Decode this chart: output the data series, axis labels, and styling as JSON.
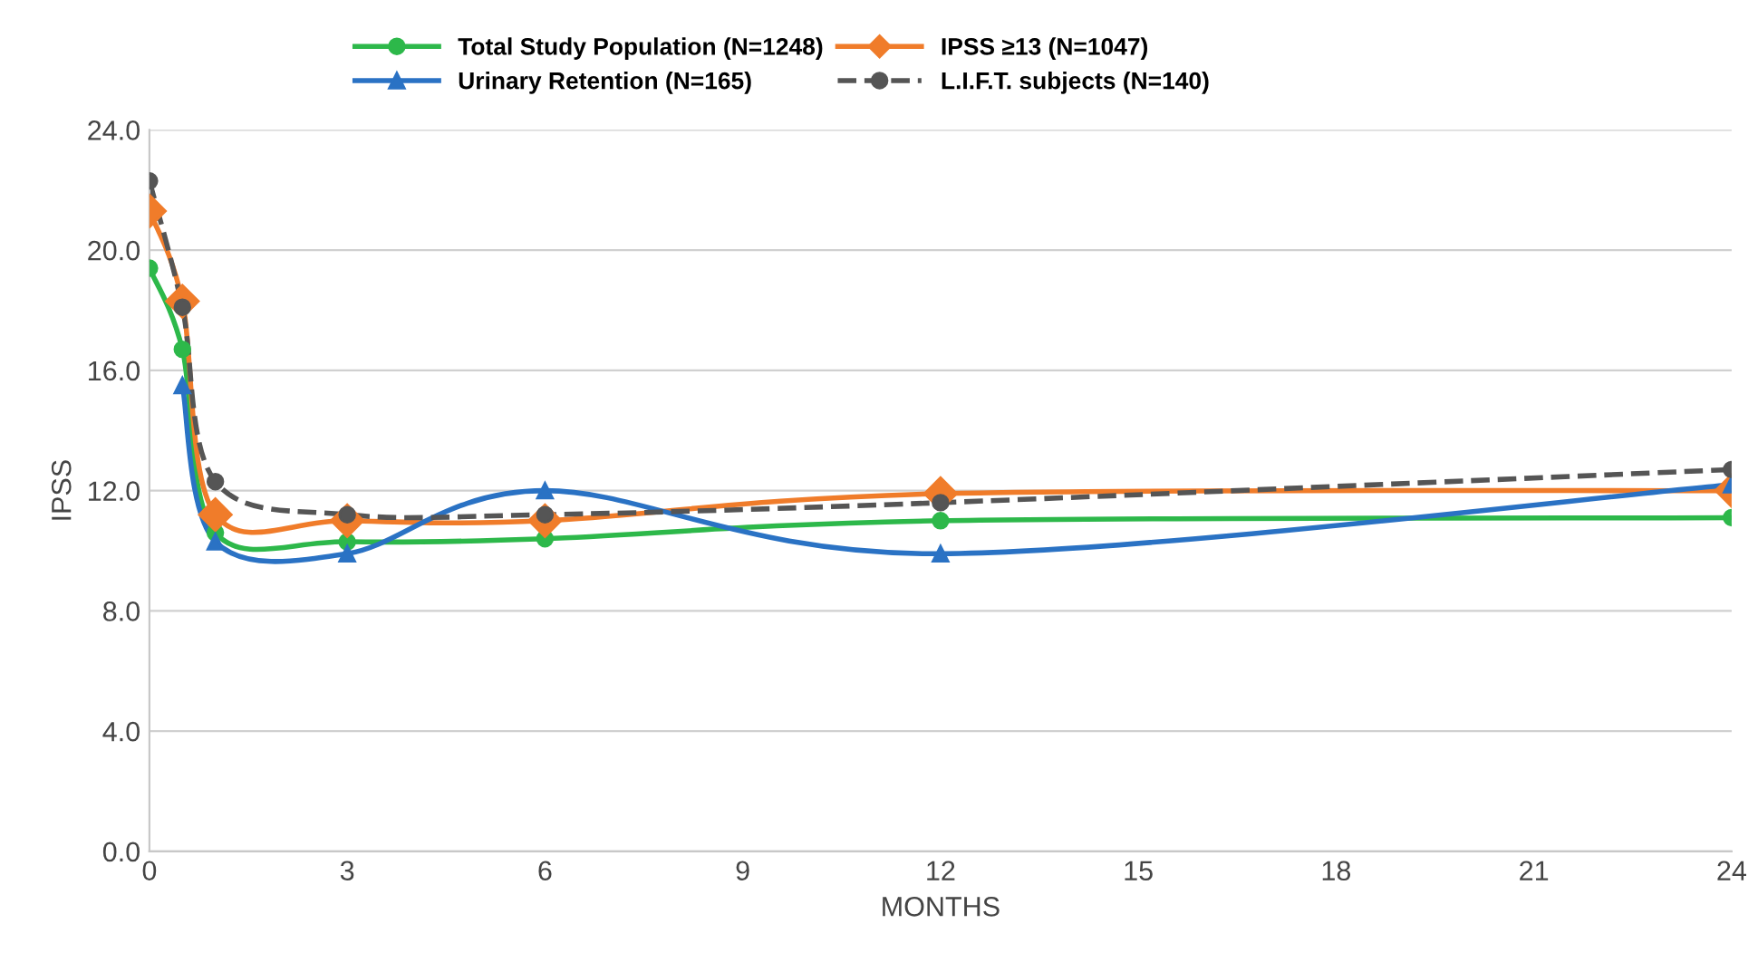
{
  "chart_data": {
    "type": "line",
    "xlabel": "MONTHS",
    "ylabel": "IPSS",
    "x": [
      0,
      0.5,
      1,
      3,
      6,
      12,
      24
    ],
    "series": [
      {
        "name": "Total Study Population (N=1248)",
        "color": "#2db84a",
        "marker": "circle",
        "line_style": "solid",
        "values": [
          19.4,
          16.7,
          10.6,
          10.3,
          10.4,
          11.0,
          11.1
        ]
      },
      {
        "name": "IPSS ≥13 (N=1047)",
        "color": "#f07c2a",
        "marker": "diamond",
        "line_style": "solid",
        "values": [
          21.3,
          18.3,
          11.2,
          11.0,
          11.0,
          11.9,
          12.0
        ]
      },
      {
        "name": "Urinary Retention (N=165)",
        "color": "#2a72c4",
        "marker": "triangle",
        "line_style": "solid",
        "values": [
          null,
          15.5,
          10.3,
          9.9,
          12.0,
          9.9,
          12.2
        ]
      },
      {
        "name": "L.I.F.T. subjects (N=140)",
        "color": "#555555",
        "marker": "circle",
        "line_style": "dashed",
        "values": [
          22.3,
          18.1,
          12.3,
          11.2,
          11.2,
          11.6,
          12.7
        ]
      }
    ],
    "xlim": [
      0,
      24
    ],
    "xticks": [
      0,
      3,
      6,
      9,
      12,
      15,
      18,
      21,
      24
    ],
    "ylim": [
      0,
      24
    ],
    "yticks": [
      {
        "value": 0,
        "label": "0.0"
      },
      {
        "value": 4,
        "label": "4.0"
      },
      {
        "value": 8,
        "label": "8.0"
      },
      {
        "value": 12,
        "label": "12.0"
      },
      {
        "value": 16,
        "label": "16.0"
      },
      {
        "value": 20,
        "label": "20.0"
      },
      {
        "value": 24,
        "label": "24.0"
      }
    ],
    "grid": "y",
    "legend": "top"
  }
}
